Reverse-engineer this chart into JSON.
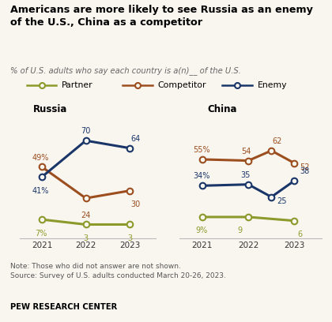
{
  "title": "Americans are more likely to see Russia as an enemy\nof the U.S., China as a competitor",
  "subtitle": "% of U.S. adults who say each country is a(n)__ of the U.S.",
  "note_line1": "Note: Those who did not answer are not shown.",
  "note_line2": "Source: Survey of U.S. adults conducted March 20-26, 2023.",
  "source_label": "PEW RESEARCH CENTER",
  "colors": {
    "partner": "#8B9A2A",
    "competitor": "#9C4E1E",
    "enemy": "#1A3668"
  },
  "background_color": "#f9f6f0",
  "russia": {
    "label": "Russia",
    "years": [
      2021,
      2022,
      2023
    ],
    "partner": [
      7,
      3,
      3
    ],
    "competitor": [
      49,
      24,
      30
    ],
    "enemy": [
      41,
      70,
      64
    ],
    "partner_labels": [
      "7%",
      "3",
      "3"
    ],
    "competitor_labels": [
      "49%",
      "24",
      "30"
    ],
    "enemy_labels": [
      "41%",
      "70",
      "64"
    ]
  },
  "china": {
    "label": "China",
    "partner_years": [
      2021,
      2022,
      2023
    ],
    "partner": [
      9,
      9,
      6
    ],
    "partner_labels": [
      "9%",
      "9",
      "6"
    ],
    "comp_years": [
      2021,
      2022,
      2022.5,
      2023
    ],
    "competitor": [
      55,
      54,
      62,
      52
    ],
    "competitor_labels": [
      "55%",
      "54",
      "62",
      "52"
    ],
    "enemy_years": [
      2021,
      2022,
      2022.5,
      2023
    ],
    "enemy": [
      34,
      35,
      25,
      38
    ],
    "enemy_labels": [
      "34%",
      "35",
      "25",
      "38"
    ]
  },
  "xlim": [
    2020.5,
    2023.6
  ],
  "ylim": [
    -8,
    82
  ],
  "xticks": [
    2021,
    2022,
    2023
  ],
  "xtick_labels": [
    "2021",
    "2022",
    "2023"
  ]
}
